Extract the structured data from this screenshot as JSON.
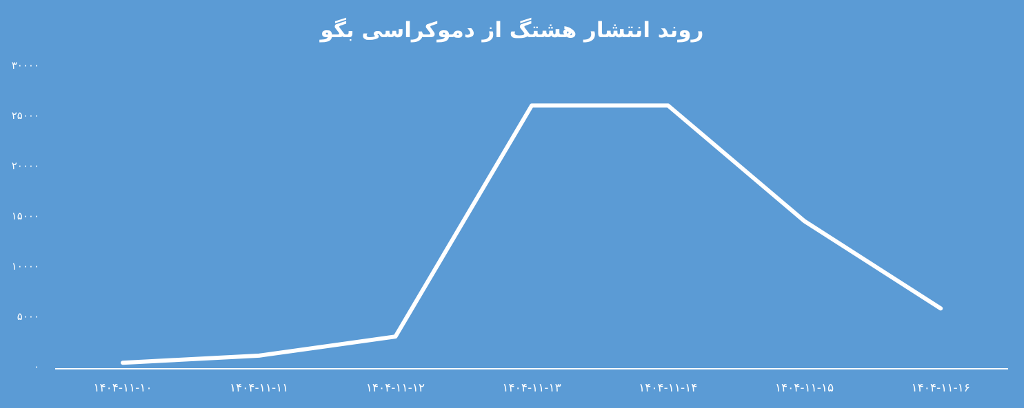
{
  "chart_data": {
    "type": "line",
    "title": "روند انتشار هشتگ از دموکراسی بگو",
    "xlabel": "",
    "ylabel": "",
    "categories": [
      "۱۴۰۴-۱۱-۱۰",
      "۱۴۰۴-۱۱-۱۱",
      "۱۴۰۴-۱۱-۱۲",
      "۱۴۰۴-۱۱-۱۳",
      "۱۴۰۴-۱۱-۱۴",
      "۱۴۰۴-۱۱-۱۵",
      "۱۴۰۴-۱۱-۱۶"
    ],
    "series": [
      {
        "values": [
          400,
          1100,
          3000,
          26000,
          26000,
          14500,
          5800
        ]
      }
    ],
    "ylim": [
      0,
      30000
    ],
    "yticks": [
      0,
      5000,
      10000,
      15000,
      20000,
      25000,
      30000
    ],
    "ytick_labels": [
      "۰",
      "۵۰۰۰",
      "۱۰۰۰۰",
      "۱۵۰۰۰",
      "۲۰۰۰۰",
      "۲۵۰۰۰",
      "۳۰۰۰۰"
    ],
    "grid": false,
    "drop_lines": true,
    "colors": {
      "background": "#5b9bd5",
      "line": "#ffffff",
      "text": "#ffffff"
    }
  }
}
